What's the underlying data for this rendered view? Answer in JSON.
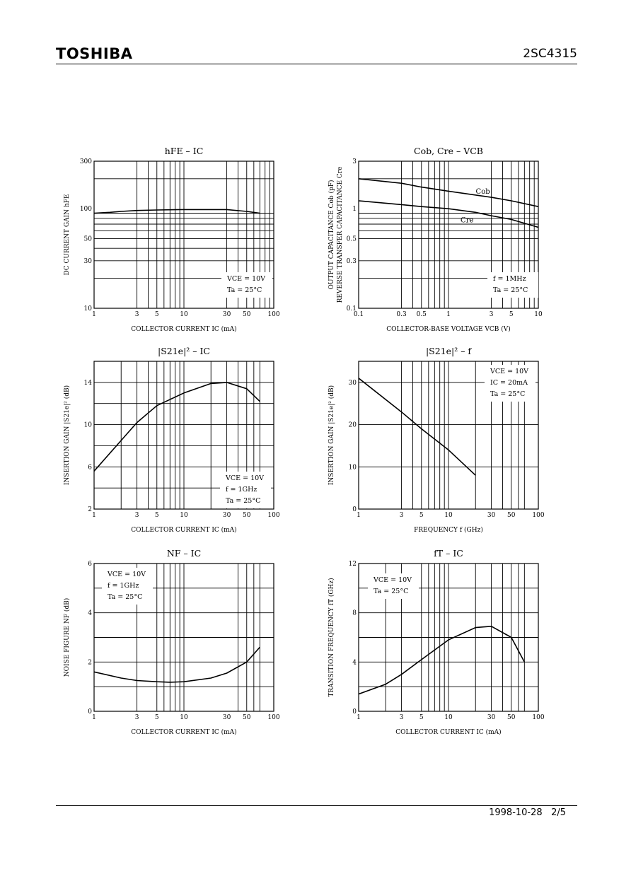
{
  "header": {
    "brand": "TOSHIBA",
    "part": "2SC4315"
  },
  "footer": {
    "date": "1998-10-28",
    "page": "2/5"
  },
  "chart_data": [
    {
      "id": "hfe",
      "type": "line",
      "title": "hFE – IC",
      "xlabel": "COLLECTOR CURRENT   IC   (mA)",
      "ylabel": "DC CURRENT GAIN   hFE",
      "xscale": "log",
      "yscale": "log",
      "xlim": [
        1,
        100
      ],
      "ylim": [
        10,
        300
      ],
      "xticks": [
        1,
        3,
        5,
        10,
        30,
        50,
        100
      ],
      "xtick_labels": [
        "1",
        "3",
        "5",
        "10",
        "30",
        "50",
        "100"
      ],
      "yticks": [
        10,
        30,
        50,
        100,
        300
      ],
      "ytick_labels": [
        "10",
        "30",
        "50",
        "100",
        "300"
      ],
      "conditions": [
        "VCE = 10V",
        "Ta = 25°C"
      ],
      "series": [
        {
          "x": [
            1,
            1.5,
            2,
            3,
            5,
            10,
            20,
            30,
            50,
            70
          ],
          "y": [
            90,
            92,
            94,
            96,
            97,
            98,
            98,
            98,
            94,
            90
          ]
        }
      ]
    },
    {
      "id": "cap",
      "type": "line",
      "title": "Cob, Cre – VCB",
      "xlabel": "COLLECTOR-BASE VOLTAGE   VCB   (V)",
      "ylabel": "OUTPUT CAPACITANCE  Cob  (pF)",
      "ylabel2": "REVERSE TRANSFER CAPACITANCE  Cre",
      "xscale": "log",
      "yscale": "log",
      "xlim": [
        0.1,
        10
      ],
      "ylim": [
        0.1,
        3
      ],
      "xticks": [
        0.1,
        0.3,
        0.5,
        1,
        3,
        5,
        10
      ],
      "xtick_labels": [
        "0.1",
        "0.3",
        "0.5",
        "1",
        "3",
        "5",
        "10"
      ],
      "yticks": [
        0.1,
        0.3,
        0.5,
        1,
        3
      ],
      "ytick_labels": [
        "0.1",
        "0.3",
        "0.5",
        "1",
        "3"
      ],
      "conditions": [
        "f = 1MHz",
        "Ta = 25°C"
      ],
      "series": [
        {
          "name": "Cob",
          "x": [
            0.1,
            0.3,
            0.5,
            1,
            3,
            5,
            10
          ],
          "y": [
            2.0,
            1.8,
            1.65,
            1.5,
            1.3,
            1.2,
            1.05
          ]
        },
        {
          "name": "Cre",
          "x": [
            0.1,
            0.3,
            0.5,
            1,
            2,
            3,
            5,
            10
          ],
          "y": [
            1.2,
            1.1,
            1.05,
            1.0,
            0.92,
            0.85,
            0.78,
            0.65
          ]
        }
      ]
    },
    {
      "id": "s21_ic",
      "type": "line",
      "title": "|S21e|² – IC",
      "xlabel": "COLLECTOR CURRENT   IC   (mA)",
      "ylabel": "INSERTION GAIN   |S21e|²   (dB)",
      "xscale": "log",
      "yscale": "linear",
      "xlim": [
        1,
        100
      ],
      "ylim": [
        2,
        16
      ],
      "xticks": [
        1,
        3,
        5,
        10,
        30,
        50,
        100
      ],
      "xtick_labels": [
        "1",
        "3",
        "5",
        "10",
        "30",
        "50",
        "100"
      ],
      "yticks": [
        2,
        6,
        10,
        14
      ],
      "ytick_labels": [
        "2",
        "6",
        "10",
        "14"
      ],
      "conditions": [
        "VCE = 10V",
        "f = 1GHz",
        "Ta = 25°C"
      ],
      "series": [
        {
          "x": [
            1,
            2,
            3,
            5,
            10,
            20,
            30,
            50,
            70
          ],
          "y": [
            5.6,
            8.5,
            10.2,
            11.8,
            13.0,
            13.9,
            14.0,
            13.4,
            12.2
          ]
        }
      ]
    },
    {
      "id": "s21_f",
      "type": "line",
      "title": "|S21e|² – f",
      "xlabel": "FREQUENCY   f   (GHz)",
      "ylabel": "INSERTION GAIN   |S21e|²   (dB)",
      "xscale": "log",
      "yscale": "linear",
      "xlim": [
        1,
        100
      ],
      "ylim": [
        0,
        35
      ],
      "xticks": [
        1,
        3,
        5,
        10,
        30,
        50,
        100
      ],
      "xtick_labels": [
        "1",
        "3",
        "5",
        "10",
        "30",
        "50",
        "100"
      ],
      "yticks": [
        0,
        10,
        20,
        30
      ],
      "ytick_labels": [
        "0",
        "10",
        "20",
        "30"
      ],
      "conditions": [
        "VCE = 10V",
        "IC = 20mA",
        "Ta = 25°C"
      ],
      "series": [
        {
          "x": [
            1,
            3,
            5,
            10,
            20
          ],
          "y": [
            31,
            23,
            19,
            14,
            8
          ]
        }
      ]
    },
    {
      "id": "nf",
      "type": "line",
      "title": "NF – IC",
      "xlabel": "COLLECTOR CURRENT   IC   (mA)",
      "ylabel": "NOISE FIGURE   NF   (dB)",
      "xscale": "log",
      "yscale": "linear",
      "xlim": [
        1,
        100
      ],
      "ylim": [
        0,
        6
      ],
      "xticks": [
        1,
        3,
        5,
        10,
        30,
        50,
        100
      ],
      "xtick_labels": [
        "1",
        "3",
        "5",
        "10",
        "30",
        "50",
        "100"
      ],
      "yticks": [
        0,
        2,
        4,
        6
      ],
      "ytick_labels": [
        "0",
        "2",
        "4",
        "6"
      ],
      "conditions": [
        "VCE = 10V",
        "f = 1GHz",
        "Ta = 25°C"
      ],
      "series": [
        {
          "x": [
            1,
            2,
            3,
            5,
            7,
            10,
            20,
            30,
            50,
            70
          ],
          "y": [
            1.6,
            1.35,
            1.25,
            1.2,
            1.18,
            1.2,
            1.35,
            1.55,
            2.0,
            2.6
          ]
        }
      ]
    },
    {
      "id": "ft",
      "type": "line",
      "title": "fT – IC",
      "xlabel": "COLLECTOR CURRENT   IC   (mA)",
      "ylabel": "TRANSITION FREQUENCY   fT   (GHz)",
      "xscale": "log",
      "yscale": "linear",
      "xlim": [
        1,
        100
      ],
      "ylim": [
        0,
        12
      ],
      "xticks": [
        1,
        3,
        5,
        10,
        30,
        50,
        100
      ],
      "xtick_labels": [
        "1",
        "3",
        "5",
        "10",
        "30",
        "50",
        "100"
      ],
      "yticks": [
        0,
        4,
        8,
        12
      ],
      "ytick_labels": [
        "0",
        "4",
        "8",
        "12"
      ],
      "conditions": [
        "VCE = 10V",
        "Ta = 25°C"
      ],
      "series": [
        {
          "x": [
            1,
            2,
            3,
            5,
            10,
            20,
            30,
            50,
            70
          ],
          "y": [
            1.4,
            2.2,
            3.0,
            4.2,
            5.8,
            6.8,
            6.9,
            6.0,
            4.0
          ]
        }
      ]
    }
  ]
}
